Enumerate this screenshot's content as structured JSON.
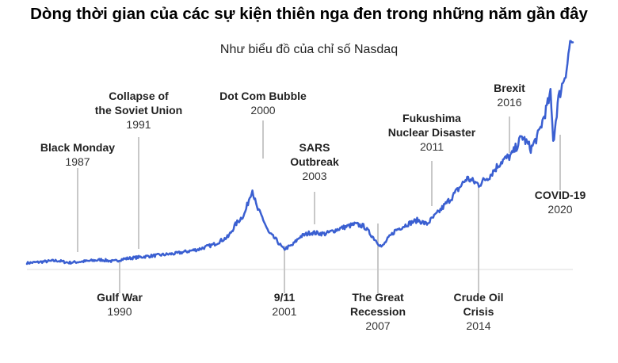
{
  "title": "Dòng thời gian của các sự kiện thiên nga đen trong những năm gần đây",
  "subtitle": "Như biểu đồ của chỉ số Nasdaq",
  "chart_data": {
    "type": "line",
    "title": "Dòng thời gian của các sự kiện thiên nga đen trong những năm gần đây",
    "subtitle": "Như biểu đồ của chỉ số Nasdaq",
    "xlabel": "",
    "ylabel": "",
    "grid": false,
    "line_color": "#3a5fd1",
    "series": [
      {
        "name": "",
        "x": [
          1985.0,
          1987.0,
          1987.8,
          1988.5,
          1990.0,
          1990.8,
          1991.5,
          1993.0,
          1995.0,
          1996.5,
          1997.5,
          1998.5,
          1999.0,
          1999.6,
          2000.1,
          2000.4,
          2000.8,
          2001.2,
          2001.7,
          2002.2,
          2002.8,
          2003.3,
          2004.0,
          2005.0,
          2006.0,
          2007.0,
          2007.6,
          2008.3,
          2008.8,
          2009.2,
          2009.7,
          2010.5,
          2011.2,
          2011.8,
          2012.5,
          2013.5,
          2014.5,
          2015.3,
          2016.0,
          2016.8,
          2017.5,
          2018.2,
          2018.8,
          2019.3,
          2019.9,
          2020.1,
          2020.3,
          2020.6,
          2020.9,
          2021.2,
          2021.45,
          2021.6
        ],
        "values": [
          0.2,
          0.8,
          0.3,
          0.5,
          1.0,
          0.6,
          1.2,
          1.8,
          2.5,
          3.5,
          4.6,
          6.5,
          9.5,
          12.0,
          18.0,
          13.5,
          11.0,
          7.5,
          5.8,
          3.5,
          4.5,
          6.5,
          7.5,
          7.2,
          8.5,
          9.5,
          9.0,
          6.0,
          4.0,
          6.0,
          8.0,
          9.5,
          10.5,
          9.5,
          12.0,
          16.0,
          20.5,
          19.0,
          21.0,
          24.5,
          26.0,
          30.5,
          27.5,
          31.0,
          38.0,
          40.5,
          29.0,
          39.0,
          43.0,
          47.0,
          54.0,
          51.5
        ]
      }
    ],
    "events": [
      {
        "name": "Black Monday",
        "year": "1987",
        "position": "above"
      },
      {
        "name": "Collapse of the Soviet Union",
        "name_lines": [
          "Collapse of",
          "the Soviet Union"
        ],
        "year": "1991",
        "position": "above"
      },
      {
        "name": "Dot Com Bubble",
        "year": "2000",
        "position": "above"
      },
      {
        "name": "SARS Outbreak",
        "name_lines": [
          "SARS",
          "Outbreak"
        ],
        "year": "2003",
        "position": "above"
      },
      {
        "name": "Fukushima Nuclear Disaster",
        "name_lines": [
          "Fukushima",
          "Nuclear Disaster"
        ],
        "year": "2011",
        "position": "above"
      },
      {
        "name": "Brexit",
        "year": "2016",
        "position": "above"
      },
      {
        "name": "COVID-19",
        "year": "2020",
        "position": "below"
      },
      {
        "name": "Gulf War",
        "year": "1990",
        "position": "below"
      },
      {
        "name": "9/11",
        "year": "2001",
        "position": "below"
      },
      {
        "name": "The Great Recession",
        "name_lines": [
          "The Great",
          "Recession"
        ],
        "year": "2007",
        "position": "below"
      },
      {
        "name": "Crude Oil Crisis",
        "name_lines": [
          "Crude Oil",
          "Crisis"
        ],
        "year": "2014",
        "position": "below"
      }
    ]
  }
}
